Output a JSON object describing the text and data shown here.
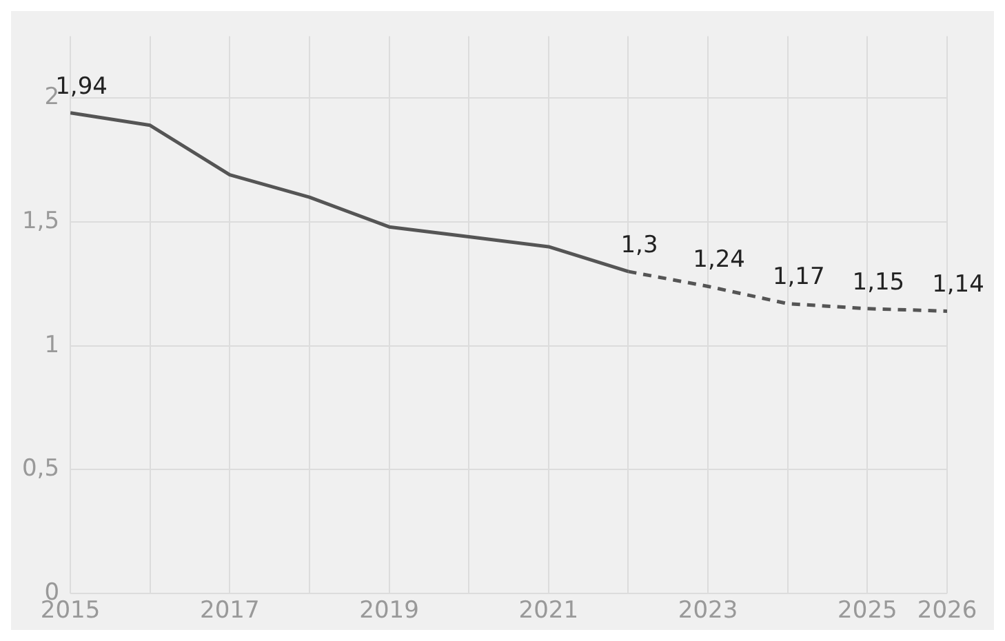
{
  "chart_data": {
    "type": "line",
    "xlim": [
      2015,
      2026
    ],
    "xticks": [
      2015,
      {
        "value": 2016,
        "label": null
      },
      2017,
      {
        "value": 2018,
        "label": null
      },
      2019,
      {
        "value": 2020,
        "label": null
      },
      2021,
      {
        "value": 2022,
        "label": null
      },
      2023,
      {
        "value": 2024,
        "label": null
      },
      2025,
      2026
    ],
    "ylim": [
      0,
      2.25
    ],
    "yticks": [
      0,
      {
        "value": 0.5,
        "label": "0,5"
      },
      1,
      {
        "value": 1.5,
        "label": "1,5"
      },
      2
    ],
    "series": [
      {
        "color": "#555555",
        "line_style": "solid",
        "x": [
          2015,
          2016,
          2017,
          2018,
          2019,
          2020,
          2021,
          2022
        ],
        "values": [
          1.94,
          1.89,
          1.69,
          1.6,
          1.48,
          1.44,
          1.4,
          1.3
        ],
        "value_labels": [
          "1,94",
          null,
          null,
          null,
          null,
          null,
          null,
          "1,3"
        ]
      },
      {
        "color": "#555555",
        "line_style": "dashed",
        "x": [
          2022,
          2023,
          2024,
          2025,
          2026
        ],
        "values": [
          1.3,
          1.24,
          1.17,
          1.15,
          1.14
        ],
        "value_labels": [
          null,
          "1,24",
          "1,17",
          "1,15",
          "1,14"
        ]
      }
    ],
    "grid": true,
    "legend": false,
    "marker": "none"
  }
}
